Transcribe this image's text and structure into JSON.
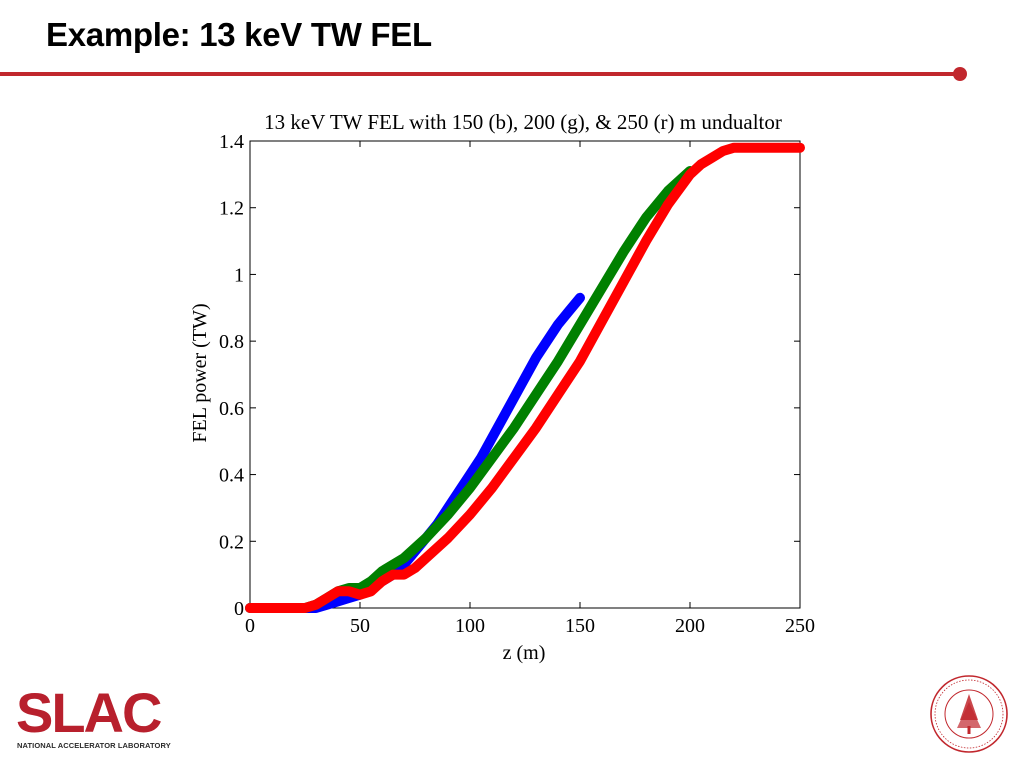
{
  "slide": {
    "title": "Example: 13 keV TW FEL",
    "accent_color": "#c1272d"
  },
  "footer": {
    "logo_text": "SLAC",
    "lab_name": "NATIONAL ACCELERATOR LABORATORY",
    "logo_color": "#b8202d",
    "seal_icon": "stanford-seal-icon",
    "seal_color": "#c1272d"
  },
  "chart_data": {
    "type": "line",
    "title": "13 keV TW FEL with 150 (b), 200 (g), & 250 (r) m undualtor",
    "xlabel": "z (m)",
    "ylabel": "FEL power (TW)",
    "xlim": [
      0,
      250
    ],
    "ylim": [
      0,
      1.4
    ],
    "xticks": [
      0,
      50,
      100,
      150,
      200,
      250
    ],
    "xtick_labels": [
      "0",
      "50",
      "100",
      "150",
      "200",
      "250"
    ],
    "yticks": [
      0,
      0.2,
      0.4,
      0.6,
      0.8,
      1,
      1.2,
      1.4
    ],
    "ytick_labels": [
      "0",
      "0.2",
      "0.4",
      "0.6",
      "0.8",
      "1",
      "1.2",
      "1.4"
    ],
    "grid": false,
    "legend": "none",
    "series": [
      {
        "color": "#0000ff",
        "x": [
          0,
          20,
          30,
          35,
          40,
          45,
          50,
          55,
          60,
          65,
          70,
          75,
          80,
          85,
          90,
          95,
          100,
          105,
          110,
          115,
          120,
          125,
          130,
          135,
          140,
          145,
          150
        ],
        "y": [
          0,
          0,
          0,
          0.01,
          0.02,
          0.03,
          0.04,
          0.06,
          0.08,
          0.1,
          0.13,
          0.17,
          0.21,
          0.25,
          0.3,
          0.35,
          0.4,
          0.45,
          0.51,
          0.57,
          0.63,
          0.69,
          0.75,
          0.8,
          0.85,
          0.89,
          0.93
        ]
      },
      {
        "color": "#008000",
        "x": [
          0,
          20,
          25,
          30,
          35,
          40,
          45,
          50,
          55,
          60,
          70,
          80,
          90,
          100,
          110,
          120,
          130,
          140,
          150,
          160,
          170,
          180,
          190,
          200
        ],
        "y": [
          0,
          0,
          0,
          0.01,
          0.03,
          0.05,
          0.06,
          0.06,
          0.08,
          0.11,
          0.15,
          0.21,
          0.28,
          0.36,
          0.45,
          0.54,
          0.64,
          0.74,
          0.85,
          0.96,
          1.07,
          1.17,
          1.25,
          1.31
        ]
      },
      {
        "color": "#ff0000",
        "x": [
          0,
          20,
          25,
          30,
          35,
          40,
          45,
          50,
          55,
          60,
          65,
          70,
          75,
          80,
          90,
          100,
          110,
          120,
          130,
          140,
          150,
          160,
          170,
          180,
          190,
          200,
          205,
          210,
          215,
          220,
          225,
          230,
          235,
          240,
          250
        ],
        "y": [
          0,
          0,
          0,
          0.01,
          0.03,
          0.05,
          0.05,
          0.04,
          0.05,
          0.08,
          0.1,
          0.1,
          0.12,
          0.15,
          0.21,
          0.28,
          0.36,
          0.45,
          0.54,
          0.64,
          0.74,
          0.86,
          0.98,
          1.1,
          1.21,
          1.3,
          1.33,
          1.35,
          1.37,
          1.38,
          1.38,
          1.38,
          1.38,
          1.38,
          1.38
        ]
      }
    ]
  }
}
